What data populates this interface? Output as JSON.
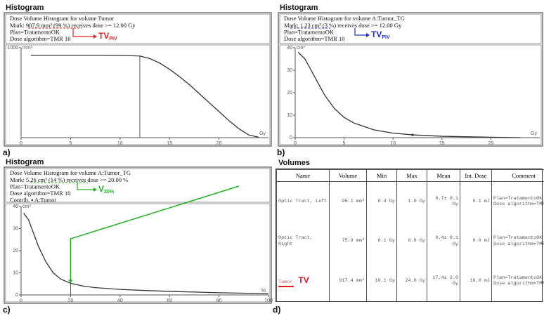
{
  "chart_data": [
    {
      "type": "line",
      "header": "Histogram",
      "panel_label": "a)",
      "title": "Dose Volume Histogram for volume Tumor",
      "info": [
        "Mark: 907.9 mm³ (99 %) receives dose >= 12.00 Gy",
        "Plan=TratamentoOK",
        "Dose algorithm=TMR 10"
      ],
      "annotation": {
        "text": "TV",
        "sub": "PIV",
        "color": "#e02020"
      },
      "x": [
        1,
        2,
        4,
        6,
        8,
        10,
        12,
        13,
        14,
        15,
        16,
        17,
        18,
        19,
        20,
        21,
        22,
        23,
        24
      ],
      "values": [
        917,
        917,
        917,
        917,
        917,
        915,
        908,
        880,
        830,
        760,
        680,
        590,
        490,
        390,
        290,
        190,
        100,
        30,
        5
      ],
      "color": "#333333",
      "mark": {
        "x": 12,
        "y": 907.9
      },
      "xlim": [
        0,
        25
      ],
      "xticks": [
        0,
        5,
        10,
        15,
        20
      ],
      "xlabel": "Gy",
      "ylim": [
        0,
        1000
      ],
      "yticks": [
        1000
      ],
      "ylabel": "mm³"
    },
    {
      "type": "line",
      "header": "Histogram",
      "panel_label": "b)",
      "title": "Dose Volume Histogram for volume A:Tumor_TG",
      "info": [
        "Mark: 1.23 cm³ (3 %) receives dose >= 12.00 Gy",
        "Plan=TratamentoOK",
        "Dose algorithm=TMR 10"
      ],
      "annotation": {
        "text": "TV",
        "sub": "PIV",
        "color": "#2030d0"
      },
      "x": [
        0.3,
        1,
        2,
        3,
        4,
        5,
        6,
        8,
        10,
        12,
        15,
        20,
        23
      ],
      "values": [
        38,
        35,
        27,
        19,
        13,
        9,
        6.5,
        3.5,
        2,
        1.23,
        0.6,
        0.2,
        0
      ],
      "color": "#333333",
      "mark": {
        "x": 12,
        "y": 1.23
      },
      "xlim": [
        0,
        25
      ],
      "xticks": [
        0,
        5,
        10,
        15,
        20
      ],
      "xlabel": "Gy",
      "ylim": [
        0,
        40
      ],
      "yticks": [
        0,
        10,
        20,
        30,
        40
      ],
      "ylabel": "cm³"
    },
    {
      "type": "line",
      "header": "Histogram",
      "panel_label": "c)",
      "title": "Dose Volume Histogram for volume A:Tumor_TG",
      "info": [
        "Mark: 5.26 cm³ (14 %) receives dose >= 20.00 %",
        "Plan=TratamentoOK",
        "Dose algorithm=TMR 10",
        "Contrib. ▪ A:Tumor"
      ],
      "annotation": {
        "text": "V",
        "sub": "20%",
        "color": "#20b020"
      },
      "x": [
        1,
        3,
        5,
        7,
        10,
        13,
        16,
        20,
        25,
        30,
        40,
        50,
        60,
        70,
        80,
        90,
        100
      ],
      "values": [
        37,
        34,
        28,
        22,
        15,
        10,
        7.2,
        5.26,
        4.0,
        3.3,
        2.5,
        2.0,
        1.6,
        1.3,
        1.0,
        0.8,
        0.6
      ],
      "color": "#333333",
      "mark": {
        "x": 20,
        "y": 5.26
      },
      "xlim": [
        0,
        100
      ],
      "xticks": [
        0,
        20,
        40,
        60,
        80,
        100
      ],
      "xlabel": "%",
      "ylim": [
        0,
        40
      ],
      "yticks": [
        0,
        10,
        20,
        30,
        40
      ],
      "ylabel": "cm³"
    }
  ],
  "table": {
    "header": "Volumes",
    "panel_label": "d)",
    "columns": [
      "Name",
      "Volume",
      "Min",
      "Max",
      "Mean",
      "Int. Dose",
      "Comment"
    ],
    "rows": [
      [
        "Optic Tract, Left",
        "95.1 mm³",
        "0.4 Gy",
        "1.0 Gy",
        "0.7± 0.1 Gy",
        "0.1 mJ",
        "Plan=TratamentoOK Dose algorithm=TMR 10"
      ],
      [
        "Optic Tract, Right",
        "75.9 mm³",
        "0.1 Gy",
        "0.8 Gy",
        "0.4± 0.1 Gy",
        "0.0 mJ",
        "Plan=TratamentoOK Dose algorithm=TMR 10"
      ],
      [
        "Tumor",
        "917.4 mm³",
        "10.1 Gy",
        "24.0 Gy",
        "17.4± 2.9 Gy",
        "16.0 mJ",
        "Plan=TratamentoOK Dose algorithm=TMR 10"
      ]
    ],
    "annotation": {
      "text": "TV",
      "color": "#e02020"
    }
  }
}
